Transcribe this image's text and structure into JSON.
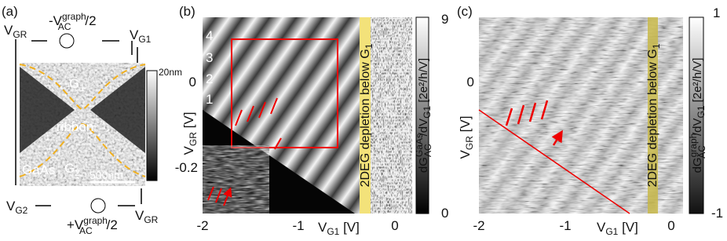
{
  "panel_a": {
    "label": "(a)",
    "v_gr_top": {
      "v": "V",
      "sub": "GR"
    },
    "v_ac_top": {
      "pre": "-V",
      "sup": "graph",
      "sub": "AC",
      "post": "/2"
    },
    "v_g1": {
      "v": "V",
      "sub": "G1"
    },
    "height_scale": "20nm",
    "gate1": {
      "g": "G",
      "sub": "1"
    },
    "ribbon": "ribbon",
    "substrate": "GaAs",
    "gate2": {
      "g": "G",
      "sub": "2"
    },
    "scale_bar": "500nm",
    "v_g2": {
      "v": "V",
      "sub": "G2"
    },
    "v_ac_bottom": {
      "pre": "+V",
      "sup": "graph",
      "sub": "AC",
      "post": "/2"
    },
    "v_gr_bottom": {
      "v": "V",
      "sub": "GR"
    }
  },
  "panel_b": {
    "label": "(b)",
    "colorbar": {
      "max": "9",
      "min": "0",
      "title": {
        "pre": "dG",
        "sup": "GaAs",
        "sub": "AC",
        "mid": "/dV",
        "sub2": "G1",
        "unit": " [2e²/h/V]"
      }
    },
    "y_ticks": [
      "0",
      "-0.2"
    ],
    "y_label": {
      "v": "V",
      "sub": "GR",
      "unit": " [V]"
    },
    "x_ticks": [
      "-2",
      "-1",
      "0"
    ],
    "x_label": {
      "v": "V",
      "sub": "G1",
      "unit": " [V]"
    },
    "line_numbers": [
      "1",
      "2",
      "3",
      "4"
    ],
    "depletion": {
      "text": "2DEG depletion below G",
      "sub": "1"
    }
  },
  "panel_c": {
    "label": "(c)",
    "colorbar": {
      "max": "1",
      "min": "-1",
      "title": {
        "pre": "dG",
        "sup": "graph",
        "sub": "AC",
        "mid": "/dV",
        "sub2": "G1",
        "unit": " [2e²/h/V]"
      }
    },
    "y_ticks": [
      "0"
    ],
    "y_label": {
      "v": "V",
      "sub": "GR",
      "unit": " [V]"
    },
    "x_ticks": [
      "-2",
      "-1",
      "0"
    ],
    "x_label": {
      "v": "V",
      "sub": "G1",
      "unit": " [V]"
    },
    "depletion": {
      "text": "2DEG depletion below G",
      "sub": "1"
    }
  }
}
